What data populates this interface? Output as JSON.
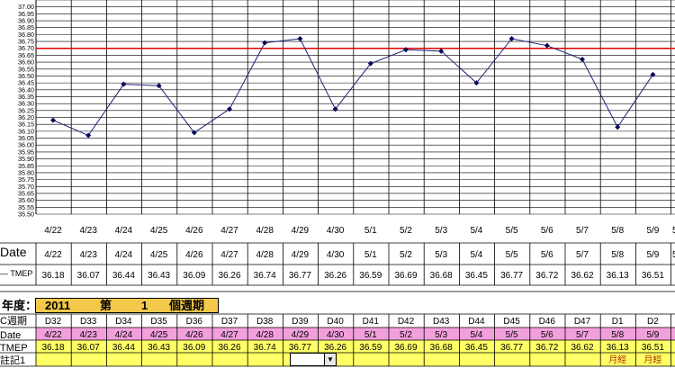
{
  "chart_data": {
    "type": "line",
    "categories": [
      "4/22",
      "4/23",
      "4/24",
      "4/25",
      "4/26",
      "4/27",
      "4/28",
      "4/29",
      "4/30",
      "5/1",
      "5/2",
      "5/3",
      "5/4",
      "5/5",
      "5/6",
      "5/7",
      "5/8",
      "5/9"
    ],
    "values": [
      36.18,
      36.07,
      36.44,
      36.43,
      36.09,
      36.26,
      36.74,
      36.77,
      36.26,
      36.59,
      36.69,
      36.68,
      36.45,
      36.77,
      36.72,
      36.62,
      36.13,
      36.51
    ],
    "ylim": [
      35.5,
      37.05
    ],
    "ytick_step": 0.05,
    "reference_line": 36.7,
    "grid": true,
    "colors": {
      "line": "#1f1f7a",
      "marker": "#0a0a5a",
      "reference": "#e00000",
      "grid": "#000000"
    }
  },
  "table_top": {
    "date_label": "Date",
    "temp_label": "— TMEP"
  },
  "year_bar": {
    "year_label": "年度：",
    "year": "2011",
    "cycle_prefix": "第",
    "cycle_no": "1",
    "cycle_suffix": "個週期"
  },
  "bottom_table": {
    "row_labels": [
      "C週期",
      "Date",
      "TMEP",
      "註記1"
    ],
    "days": [
      "D32",
      "D33",
      "D34",
      "D35",
      "D36",
      "D37",
      "D38",
      "D39",
      "D40",
      "D41",
      "D42",
      "D43",
      "D44",
      "D45",
      "D46",
      "D47",
      "D1",
      "D2"
    ],
    "dates": [
      "4/22",
      "4/23",
      "4/24",
      "4/25",
      "4/26",
      "4/27",
      "4/28",
      "4/29",
      "4/30",
      "5/1",
      "5/2",
      "5/3",
      "5/4",
      "5/5",
      "5/6",
      "5/7",
      "5/8",
      "5/9"
    ],
    "temps": [
      "36.18",
      "36.07",
      "36.44",
      "36.43",
      "36.09",
      "36.26",
      "36.74",
      "36.77",
      "36.26",
      "36.59",
      "36.69",
      "36.68",
      "36.45",
      "36.77",
      "36.72",
      "36.62",
      "36.13",
      "36.51"
    ],
    "notes": [
      "",
      "",
      "",
      "",
      "",
      "",
      "",
      "",
      "",
      "",
      "",
      "",
      "",
      "",
      "",
      "",
      "月經",
      "月經"
    ],
    "colors": {
      "date_row": "#f2a0dc",
      "temp_row": "#ffff66",
      "note_row": "#ffff66",
      "note_text": "#b03000"
    }
  },
  "clipped": {
    "date_col": "5",
    "top_row_temp": "5"
  }
}
